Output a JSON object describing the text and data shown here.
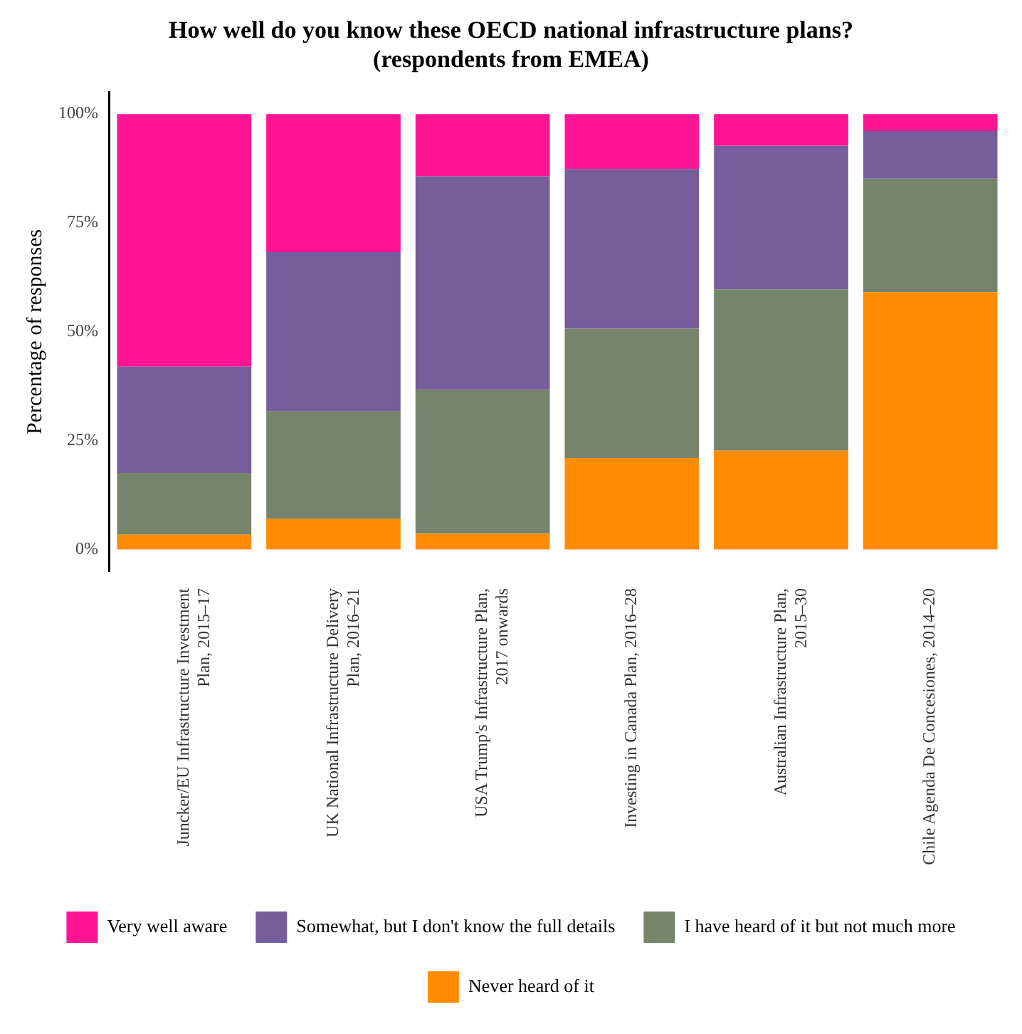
{
  "chart_data": {
    "type": "bar",
    "title": "How well do you know these OECD national infrastructure plans?\n(respondents from EMEA)",
    "ylabel": "Percentage of responses",
    "categories": [
      "Juncker/EU Infrastructure Investment Plan, 2015–17",
      "UK National Infrastructure Delivery Plan, 2016–21",
      "USA Trump's Infrastructure Plan, 2017 onwards",
      "Investing in Canada Plan, 2016–28",
      "Australian Infrastructure Plan, 2015–30",
      "Chile Agenda De Concesiones, 2014–20"
    ],
    "stacked": true,
    "legend": "bottom",
    "grid": false,
    "ylim": [
      -5,
      105
    ],
    "yticks": [
      {
        "value": 0,
        "label": "0%"
      },
      {
        "value": 25,
        "label": "25%"
      },
      {
        "value": 50,
        "label": "50%"
      },
      {
        "value": 75,
        "label": "75%"
      },
      {
        "value": 100,
        "label": "100%"
      }
    ],
    "series": [
      {
        "name": "Never heard of it",
        "color": "#ff8c00",
        "values": [
          3.4,
          7,
          3.6,
          21,
          22.7,
          59.1
        ]
      },
      {
        "name": "I have heard of it but not much more",
        "color": "#76846c",
        "values": [
          14.2,
          24.7,
          33.1,
          29.7,
          37,
          26.1
        ]
      },
      {
        "name": "Somewhat, but I don't know the full details",
        "color": "#765d9c",
        "values": [
          24.4,
          36.6,
          49,
          36.7,
          33,
          10.9
        ]
      },
      {
        "name": "Very well aware",
        "color": "#ff1493",
        "values": [
          58,
          31.7,
          14.3,
          12.6,
          7.3,
          3.9
        ]
      }
    ]
  }
}
